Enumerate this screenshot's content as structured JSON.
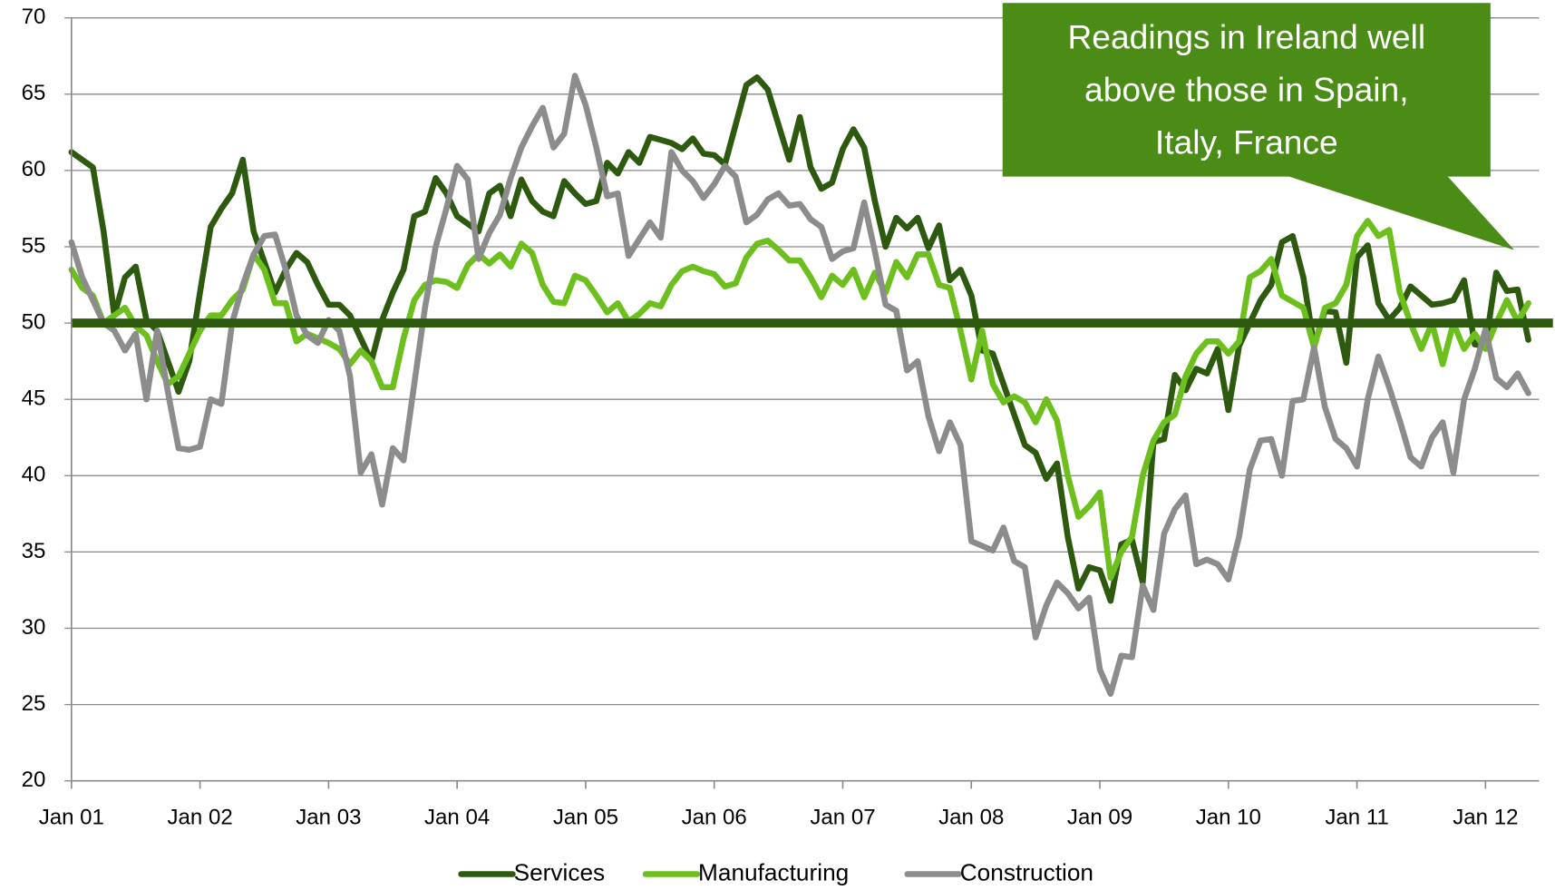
{
  "chart_data": {
    "type": "line",
    "categories": [
      "Jan 01",
      null,
      null,
      null,
      null,
      null,
      null,
      null,
      null,
      null,
      null,
      null,
      "Jan 02",
      null,
      null,
      null,
      null,
      null,
      null,
      null,
      null,
      null,
      null,
      null,
      "Jan 03",
      null,
      null,
      null,
      null,
      null,
      null,
      null,
      null,
      null,
      null,
      null,
      "Jan 04",
      null,
      null,
      null,
      null,
      null,
      null,
      null,
      null,
      null,
      null,
      null,
      "Jan 05",
      null,
      null,
      null,
      null,
      null,
      null,
      null,
      null,
      null,
      null,
      null,
      "Jan 06",
      null,
      null,
      null,
      null,
      null,
      null,
      null,
      null,
      null,
      null,
      null,
      "Jan 07",
      null,
      null,
      null,
      null,
      null,
      null,
      null,
      null,
      null,
      null,
      null,
      "Jan 08",
      null,
      null,
      null,
      null,
      null,
      null,
      null,
      null,
      null,
      null,
      null,
      "Jan 09",
      null,
      null,
      null,
      null,
      null,
      null,
      null,
      null,
      null,
      null,
      null,
      "Jan 10",
      null,
      null,
      null,
      null,
      null,
      null,
      null,
      null,
      null,
      null,
      null,
      "Jan 11",
      null,
      null,
      null,
      null,
      null,
      null,
      null,
      null,
      null,
      null,
      null,
      "Jan 12",
      null,
      null,
      null,
      null
    ],
    "series": [
      {
        "name": "Services",
        "color": "#2e5a10",
        "values": [
          61.2,
          60.7,
          60.2,
          56,
          50.5,
          53,
          53.7,
          50.2,
          49.5,
          47.5,
          45.5,
          47.5,
          52,
          56.3,
          57.5,
          58.5,
          60.7,
          56,
          54,
          52,
          53.5,
          54.6,
          54,
          52.5,
          51.2,
          51.2,
          50.5,
          49,
          47.5,
          50.2,
          52,
          53.5,
          57,
          57.3,
          59.5,
          58.5,
          57,
          56.5,
          56,
          58.5,
          59,
          57,
          59.4,
          58,
          57.3,
          57,
          59.3,
          58.5,
          57.8,
          58,
          60.5,
          59.8,
          61.2,
          60.5,
          62.2,
          62,
          61.8,
          61.4,
          62.1,
          61.1,
          61,
          60.4,
          63,
          65.6,
          66.1,
          65.3,
          63,
          60.7,
          63.5,
          60.2,
          58.8,
          59.2,
          61.4,
          62.7,
          61.5,
          58,
          55,
          56.9,
          56.2,
          56.9,
          54.9,
          56.4,
          52.8,
          53.5,
          51.8,
          48.2,
          48,
          46,
          44,
          42,
          41.5,
          39.8,
          40.8,
          36,
          32.6,
          34,
          33.8,
          31.8,
          35.5,
          35.8,
          33,
          42.2,
          42.4,
          46.6,
          45.6,
          47,
          46.7,
          48.3,
          44.3,
          48.5,
          50,
          51.5,
          52.5,
          55.3,
          55.7,
          53,
          48.5,
          50.8,
          50.7,
          47.4,
          54.3,
          55.1,
          51.3,
          50.2,
          51,
          52.4,
          51.8,
          51.2,
          51.3,
          51.5,
          52.8,
          48.6,
          48.5,
          53.3,
          52.1,
          52.2,
          48.9
        ]
      },
      {
        "name": "Manufacturing",
        "color": "#6cbf1c",
        "values": [
          53.5,
          52.3,
          51.8,
          50,
          50.5,
          51,
          49.8,
          49.2,
          47.5,
          46,
          46.5,
          48,
          49.5,
          50.5,
          50.5,
          51.5,
          52.2,
          54.5,
          53.5,
          51.3,
          51.3,
          48.8,
          49.3,
          49,
          48.7,
          48.3,
          47.3,
          48.2,
          47.5,
          45.8,
          45.8,
          49,
          51.5,
          52.5,
          52.8,
          52.7,
          52.3,
          53.8,
          54.5,
          53.9,
          54.5,
          53.7,
          55.2,
          54.6,
          52.5,
          51.4,
          51.3,
          53.1,
          52.8,
          51.8,
          50.7,
          51.3,
          50.1,
          50.6,
          51.3,
          51.1,
          52.5,
          53.4,
          53.7,
          53.4,
          53.2,
          52.4,
          52.6,
          54.3,
          55.2,
          55.4,
          54.8,
          54.1,
          54.1,
          53,
          51.7,
          53.1,
          52.5,
          53.5,
          51.7,
          53.3,
          52,
          54,
          53,
          54.5,
          54.5,
          52.5,
          52.3,
          49.5,
          46.3,
          49.5,
          46,
          44.8,
          45.2,
          44.8,
          43.5,
          45,
          43.6,
          40,
          37.3,
          38,
          38.9,
          33.3,
          35,
          36,
          40,
          42.3,
          43.5,
          44,
          46.5,
          48,
          48.8,
          48.8,
          48,
          48.8,
          53,
          53.4,
          54.2,
          51.8,
          51.4,
          51,
          48.4,
          51,
          51.3,
          52.5,
          55.7,
          56.7,
          55.7,
          56.1,
          52,
          50,
          48.3,
          50,
          47.3,
          50,
          48.3,
          49.3,
          48.3,
          50,
          51.5,
          50.1,
          51.3
        ]
      },
      {
        "name": "Construction",
        "color": "#8c8c8c",
        "values": [
          55.3,
          53,
          51.5,
          50,
          49.5,
          48.2,
          49.3,
          45,
          49.5,
          45.5,
          41.8,
          41.7,
          41.9,
          45,
          44.7,
          50,
          52.5,
          54.5,
          55.7,
          55.8,
          53.5,
          50.5,
          49.2,
          48.7,
          50.2,
          49.5,
          46.5,
          40.2,
          41.4,
          38.1,
          41.8,
          41,
          46,
          51,
          55,
          57.5,
          60.3,
          59.4,
          54.2,
          55.9,
          57.1,
          59.5,
          61.5,
          62.9,
          64.1,
          61.5,
          62.4,
          66.2,
          64.3,
          61.5,
          58.3,
          58.5,
          54.4,
          55.5,
          56.6,
          55.6,
          61.2,
          60,
          59.3,
          58.2,
          59.1,
          60.3,
          59.6,
          56.6,
          57.1,
          58.1,
          58.5,
          57.7,
          57.8,
          56.8,
          56.3,
          54.2,
          54.7,
          54.9,
          57.9,
          54.7,
          51.2,
          50.8,
          46.9,
          47.5,
          43.9,
          41.6,
          43.5,
          42,
          35.7,
          35.4,
          35.1,
          36.6,
          34.4,
          34,
          29.4,
          31.5,
          33,
          32.3,
          31.3,
          32,
          27.3,
          25.7,
          28.2,
          28.1,
          32.8,
          31.2,
          36.2,
          37.8,
          38.7,
          34.2,
          34.5,
          34.2,
          33.2,
          36,
          40.4,
          42.3,
          42.4,
          40,
          44.9,
          45,
          48.4,
          44.5,
          42.4,
          41.8,
          40.6,
          45,
          47.8,
          45.8,
          43.6,
          41.2,
          40.6,
          42.5,
          43.5,
          40.2,
          45,
          47,
          49.6,
          46.4,
          45.8,
          46.7,
          45.4
        ]
      }
    ],
    "ylim": [
      20,
      70
    ],
    "yticks": [
      20,
      25,
      30,
      35,
      40,
      45,
      50,
      55,
      60,
      65,
      70
    ],
    "grid": true,
    "reference_line": {
      "value": 50,
      "color": "#2e5a10"
    },
    "annotation": {
      "lines": [
        "Readings in Ireland well",
        "above those in Spain,",
        "Italy, France"
      ],
      "color": "#4a8c16"
    },
    "legend": "bottom"
  }
}
